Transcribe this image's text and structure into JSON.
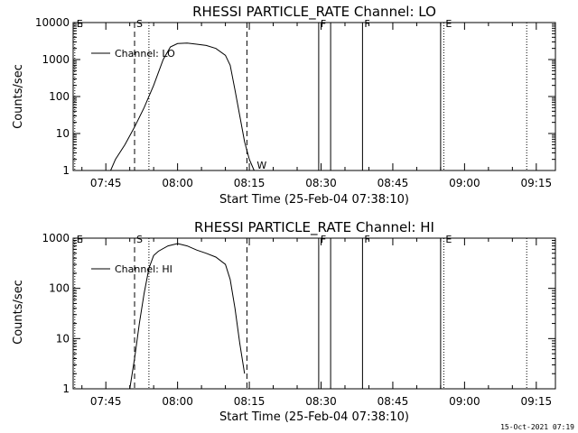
{
  "timestamp": "15-Oct-2021 07:19",
  "chart_data": [
    {
      "type": "line",
      "title": "RHESSI PARTICLE_RATE Channel: LO",
      "xlabel": "Start Time (25-Feb-04 07:38:10)",
      "ylabel": "Counts/sec",
      "yscale": "log",
      "xlim": [
        "07:38:10",
        "09:19:00"
      ],
      "ylim": [
        1,
        10000
      ],
      "x_ticks": [
        "07:45",
        "08:00",
        "08:15",
        "08:30",
        "08:45",
        "09:00",
        "09:15"
      ],
      "y_ticks": [
        "1",
        "10",
        "100",
        "1000",
        "10000"
      ],
      "legend": {
        "position": "top-left",
        "entries": [
          "Channel: LO"
        ]
      },
      "series": [
        {
          "name": "Channel: LO",
          "x": [
            "07:46:00",
            "07:47:00",
            "07:49:00",
            "07:51:00",
            "07:53:00",
            "07:55:00",
            "07:57:00",
            "07:58:30",
            "08:00:00",
            "08:02:00",
            "08:04:00",
            "08:06:00",
            "08:08:00",
            "08:10:00",
            "08:11:00",
            "08:12:00",
            "08:13:00",
            "08:14:00",
            "08:15:00",
            "08:16:00"
          ],
          "y": [
            1,
            2,
            5,
            15,
            50,
            200,
            1000,
            2200,
            2700,
            2800,
            2600,
            2400,
            2000,
            1300,
            700,
            150,
            30,
            6,
            2,
            1
          ]
        }
      ],
      "markers": [
        {
          "label": "E",
          "time": "07:38:30",
          "style": "dotted"
        },
        {
          "label": "S",
          "time": "07:51:00",
          "style": "dashed"
        },
        {
          "label": "",
          "time": "07:54:00",
          "style": "dotted"
        },
        {
          "label": "",
          "time": "08:14:30",
          "style": "dashed"
        },
        {
          "label": "W",
          "time": "08:16:00",
          "style": "none"
        },
        {
          "label": "F",
          "time": "08:29:30",
          "style": "solid"
        },
        {
          "label": "",
          "time": "08:32:00",
          "style": "solid"
        },
        {
          "label": "F",
          "time": "08:38:40",
          "style": "solid"
        },
        {
          "label": "",
          "time": "08:55:00",
          "style": "solid"
        },
        {
          "label": "E",
          "time": "08:55:40",
          "style": "dotted"
        },
        {
          "label": "",
          "time": "09:13:00",
          "style": "dotted"
        }
      ]
    },
    {
      "type": "line",
      "title": "RHESSI PARTICLE_RATE Channel: HI",
      "xlabel": "Start Time (25-Feb-04 07:38:10)",
      "ylabel": "Counts/sec",
      "yscale": "log",
      "xlim": [
        "07:38:10",
        "09:19:00"
      ],
      "ylim": [
        1,
        1000
      ],
      "x_ticks": [
        "07:45",
        "08:00",
        "08:15",
        "08:30",
        "08:45",
        "09:00",
        "09:15"
      ],
      "y_ticks": [
        "1",
        "10",
        "100",
        "1000"
      ],
      "legend": {
        "position": "top-left",
        "entries": [
          "Channel: HI"
        ]
      },
      "series": [
        {
          "name": "Channel: HI",
          "x": [
            "07:50:00",
            "07:51:00",
            "07:52:00",
            "07:53:00",
            "07:54:00",
            "07:55:00",
            "07:56:00",
            "07:58:00",
            "08:00:00",
            "08:02:00",
            "08:04:00",
            "08:06:00",
            "08:08:00",
            "08:10:00",
            "08:11:00",
            "08:12:00",
            "08:13:00",
            "08:14:00"
          ],
          "y": [
            1,
            4,
            20,
            80,
            250,
            450,
            550,
            700,
            780,
            700,
            580,
            500,
            420,
            300,
            150,
            40,
            8,
            2
          ]
        }
      ],
      "markers": [
        {
          "label": "E",
          "time": "07:38:30",
          "style": "dotted"
        },
        {
          "label": "S",
          "time": "07:51:00",
          "style": "dashed"
        },
        {
          "label": "",
          "time": "07:54:00",
          "style": "dotted"
        },
        {
          "label": "",
          "time": "08:14:30",
          "style": "dashed"
        },
        {
          "label": "F",
          "time": "08:29:30",
          "style": "solid"
        },
        {
          "label": "",
          "time": "08:32:00",
          "style": "solid"
        },
        {
          "label": "F",
          "time": "08:38:40",
          "style": "solid"
        },
        {
          "label": "",
          "time": "08:55:00",
          "style": "solid"
        },
        {
          "label": "E",
          "time": "08:55:40",
          "style": "dotted"
        },
        {
          "label": "",
          "time": "09:13:00",
          "style": "dotted"
        }
      ]
    }
  ]
}
